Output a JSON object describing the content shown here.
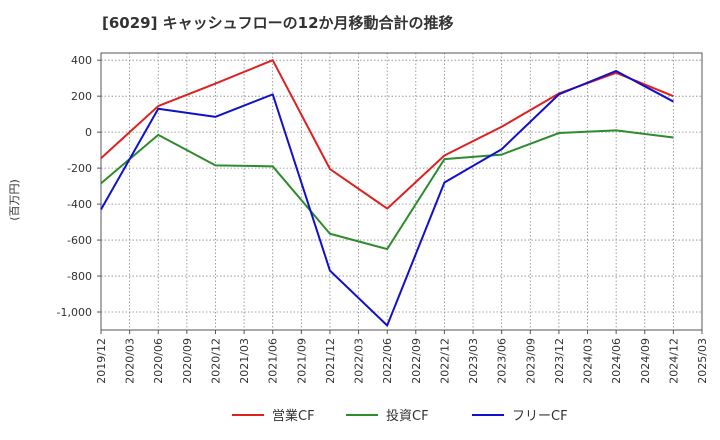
{
  "chart_data": {
    "type": "line",
    "title": "[6029]  キャッシュフローの12か月移動合計の推移",
    "ylabel": "(百万円)",
    "xlabel": "",
    "ylim": [
      -1100,
      440
    ],
    "yticks": [
      400,
      200,
      0,
      -200,
      -400,
      -600,
      -800,
      -1000
    ],
    "ytick_labels": [
      "400",
      "200",
      "0",
      "-200",
      "-400",
      "-600",
      "-800",
      "-1,000"
    ],
    "categories": [
      "2019/12",
      "2020/03",
      "2020/06",
      "2020/09",
      "2020/12",
      "2021/03",
      "2021/06",
      "2021/09",
      "2021/12",
      "2022/03",
      "2022/06",
      "2022/09",
      "2022/12",
      "2023/03",
      "2023/06",
      "2023/09",
      "2023/12",
      "2024/03",
      "2024/06",
      "2024/09",
      "2024/12",
      "2025/03"
    ],
    "grid": true,
    "legend_position": "bottom",
    "series": [
      {
        "name": "営業CF",
        "color": "#dd2222",
        "values": [
          -145,
          null,
          145,
          null,
          270,
          null,
          400,
          null,
          -205,
          null,
          -425,
          null,
          -130,
          null,
          30,
          null,
          215,
          null,
          330,
          null,
          200,
          null
        ]
      },
      {
        "name": "投資CF",
        "color": "#2e8b2e",
        "values": [
          -285,
          null,
          -15,
          null,
          -185,
          null,
          -190,
          null,
          -565,
          null,
          -650,
          null,
          -150,
          null,
          -125,
          null,
          -5,
          null,
          10,
          null,
          -30,
          null
        ]
      },
      {
        "name": "フリーCF",
        "color": "#1111cc",
        "values": [
          -430,
          null,
          130,
          null,
          85,
          null,
          210,
          null,
          -770,
          null,
          -1075,
          null,
          -280,
          null,
          -95,
          null,
          210,
          null,
          340,
          null,
          170,
          null
        ]
      }
    ]
  }
}
